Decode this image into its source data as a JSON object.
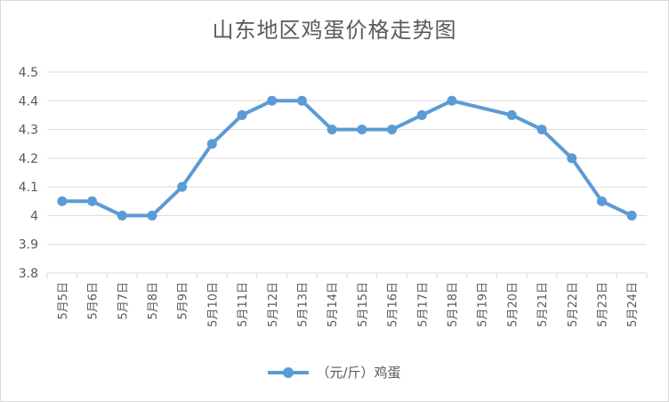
{
  "chart_data": {
    "type": "line",
    "title": "山东地区鸡蛋价格走势图",
    "categories": [
      "5月5日",
      "5月6日",
      "5月7日",
      "5月8日",
      "5月9日",
      "5月10日",
      "5月11日",
      "5月12日",
      "5月13日",
      "5月14日",
      "5月15日",
      "5月16日",
      "5月17日",
      "5月18日",
      "5月19日",
      "5月20日",
      "5月21日",
      "5月22日",
      "5月23日",
      "5月24日"
    ],
    "series": [
      {
        "name": "（元/斤）鸡蛋",
        "color": "#5b9bd5",
        "values": [
          4.05,
          4.05,
          4.0,
          4.0,
          4.1,
          4.25,
          4.35,
          4.4,
          4.4,
          4.3,
          4.3,
          4.3,
          4.35,
          4.4,
          null,
          4.35,
          4.3,
          4.2,
          4.05,
          4.0
        ]
      }
    ],
    "ylim": [
      3.8,
      4.5
    ],
    "yticks": [
      "4.5",
      "4.4",
      "4.3",
      "4.2",
      "4.1",
      "4",
      "3.9",
      "3.8"
    ],
    "xlabel": "",
    "ylabel": "",
    "grid": true,
    "legend_position": "bottom",
    "colors": {
      "grid": "#d9d9d9",
      "text": "#595959"
    }
  }
}
